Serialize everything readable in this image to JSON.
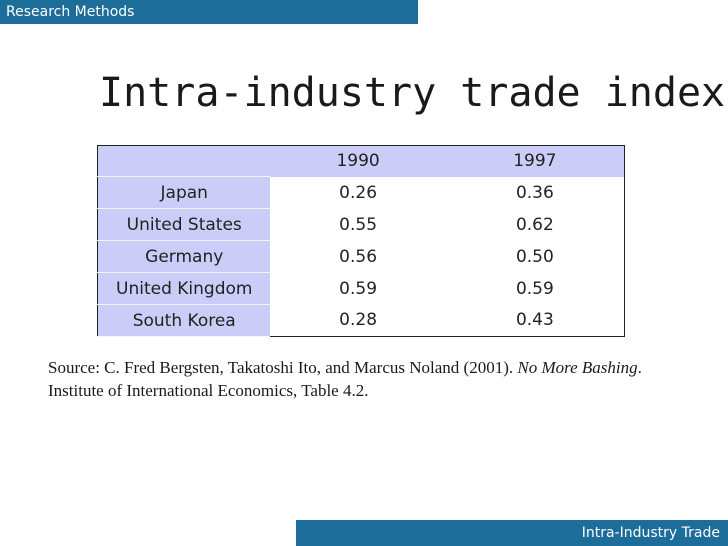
{
  "header": {
    "label": "Research Methods"
  },
  "slide": {
    "title": "Intra-industry trade index"
  },
  "table": {
    "columns": [
      "",
      "1990",
      "1997"
    ],
    "rows": [
      {
        "country": "Japan",
        "v1990": "0.26",
        "v1997": "0.36"
      },
      {
        "country": "United States",
        "v1990": "0.55",
        "v1997": "0.62"
      },
      {
        "country": "Germany",
        "v1990": "0.56",
        "v1997": "0.50"
      },
      {
        "country": "United Kingdom",
        "v1990": "0.59",
        "v1997": "0.59"
      },
      {
        "country": "South Korea",
        "v1990": "0.28",
        "v1997": "0.43"
      }
    ]
  },
  "source": {
    "prefix": "Source: C. Fred Bergsten, Takatoshi Ito, and Marcus Noland (2001). ",
    "book_title": "No More Bashing",
    "suffix": ". Institute of International Economics, Table 4.2."
  },
  "footer": {
    "label": "Intra-Industry Trade"
  },
  "colors": {
    "bar": "#1d6d9a",
    "label_cells": "#ccccf8"
  }
}
